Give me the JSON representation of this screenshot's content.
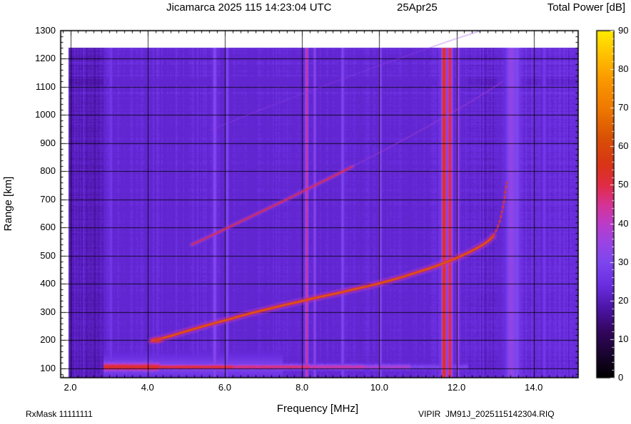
{
  "header": {
    "title": "Jicamarca 2025 115 14:23:04 UTC",
    "date": "25Apr25",
    "colorbar_title": "Total Power [dB]"
  },
  "footer": {
    "rx_mask": "RxMask 11111111",
    "file_label": "VIPIR  JM91J_2025115142304.RIQ"
  },
  "chart_data": {
    "type": "heatmap",
    "title": "Jicamarca 2025 115 14:23:04 UTC",
    "subtitle": "25Apr25",
    "xlabel": "Frequency [MHz]",
    "ylabel": "Range [km]",
    "colorbar_title": "Total Power [dB]",
    "x_range": [
      1.75,
      15.15
    ],
    "y_range": [
      67,
      1300
    ],
    "colorbar_range": [
      0,
      90
    ],
    "x_ticks": [
      {
        "value": 2,
        "label": "2.0"
      },
      {
        "value": 4,
        "label": "4.0"
      },
      {
        "value": 6,
        "label": "6.0"
      },
      {
        "value": 8,
        "label": "8.0"
      },
      {
        "value": 10,
        "label": "10.0"
      },
      {
        "value": 12,
        "label": "12.0"
      },
      {
        "value": 14,
        "label": "14.0"
      }
    ],
    "y_ticks": [
      {
        "value": 100,
        "label": "100"
      },
      {
        "value": 200,
        "label": "200"
      },
      {
        "value": 300,
        "label": "300"
      },
      {
        "value": 400,
        "label": "400"
      },
      {
        "value": 500,
        "label": "500"
      },
      {
        "value": 600,
        "label": "600"
      },
      {
        "value": 700,
        "label": "700"
      },
      {
        "value": 800,
        "label": "800"
      },
      {
        "value": 900,
        "label": "900"
      },
      {
        "value": 1000,
        "label": "1000"
      },
      {
        "value": 1100,
        "label": "1100"
      },
      {
        "value": 1200,
        "label": "1200"
      },
      {
        "value": 1300,
        "label": "1300"
      }
    ],
    "colorbar_ticks": [
      {
        "value": 0,
        "label": "0"
      },
      {
        "value": 10,
        "label": "10"
      },
      {
        "value": 20,
        "label": "20"
      },
      {
        "value": 30,
        "label": "30"
      },
      {
        "value": 40,
        "label": "40"
      },
      {
        "value": 50,
        "label": "50"
      },
      {
        "value": 60,
        "label": "60"
      },
      {
        "value": 70,
        "label": "70"
      },
      {
        "value": 80,
        "label": "80"
      },
      {
        "value": 90,
        "label": "90"
      }
    ],
    "data_extent": {
      "f_min": 1.95,
      "f_max": 15.15,
      "km_min": 67,
      "km_max": 1240
    },
    "background_db": 22.3,
    "colormap": [
      [
        0,
        "#000000"
      ],
      [
        6,
        "#1a0430"
      ],
      [
        12,
        "#33065e"
      ],
      [
        18,
        "#4c14a6"
      ],
      [
        24,
        "#6a2ee0"
      ],
      [
        30,
        "#7e46ee"
      ],
      [
        35,
        "#9a44e4"
      ],
      [
        40,
        "#bc3cc8"
      ],
      [
        45,
        "#d63392"
      ],
      [
        50,
        "#e02c44"
      ],
      [
        55,
        "#d93418"
      ],
      [
        62,
        "#d85006"
      ],
      [
        70,
        "#ef7a00"
      ],
      [
        78,
        "#fb9c00"
      ],
      [
        84,
        "#ffc300"
      ],
      [
        90,
        "#ffeb00"
      ]
    ],
    "noise": {
      "column_amp": 1.7,
      "column_zone": {
        "f0": 4.05,
        "f1": 5.35,
        "amp": 3.4
      },
      "left_dark": {
        "below_mhz": 2.85,
        "bias": -1.6
      },
      "right_bright": {
        "above_mhz": 13.62,
        "bias": 1.4
      },
      "pixel_amp": 1.2,
      "row_amp": 0.8,
      "row_amp_top": 2.2,
      "row_top_km": 1060
    },
    "stripes": [
      {
        "f": 3.05,
        "sigma": 0.025,
        "db": 27
      },
      {
        "f": 5.74,
        "sigma": 0.03,
        "db": 33
      },
      {
        "f": 6.06,
        "sigma": 0.025,
        "db": 31
      },
      {
        "f": 8.12,
        "sigma": 0.025,
        "db": 46
      },
      {
        "f": 8.33,
        "sigma": 0.02,
        "db": 34
      },
      {
        "f": 9.05,
        "sigma": 0.025,
        "db": 31
      },
      {
        "f": 10.03,
        "sigma": 0.022,
        "db": 33
      },
      {
        "f": 11.68,
        "sigma": 0.045,
        "db": 57
      },
      {
        "f": 11.83,
        "sigma": 0.04,
        "db": 53
      },
      {
        "f": 12.04,
        "sigma": 0.022,
        "db": 37
      },
      {
        "f": 13.42,
        "sigma": 0.09,
        "db": 34
      },
      {
        "f": 13.56,
        "sigma": 0.06,
        "db": 31
      },
      {
        "f": 14.27,
        "sigma": 0.022,
        "db": 28
      }
    ],
    "e_region": {
      "center_km": 105,
      "sigma_km": 6,
      "sigma_km_wide_left": 10,
      "left_wide_below_mhz": 4.3,
      "spread": {
        "f0": 2.85,
        "f1": 7.5,
        "db": 29,
        "sigma_km": 24
      },
      "segments": [
        {
          "f0": 2.85,
          "f1": 4.2,
          "db": 53
        },
        {
          "f0": 4.2,
          "f1": 6.2,
          "db": 52
        },
        {
          "f0": 6.2,
          "f1": 8.2,
          "db": 47
        },
        {
          "f0": 8.2,
          "f1": 9.6,
          "db": 43
        },
        {
          "f0": 9.6,
          "f1": 10.8,
          "db": 38
        },
        {
          "f0": 10.8,
          "f1": 12.3,
          "db": 30
        }
      ]
    },
    "traces": [
      {
        "name": "f-layer-first-hop",
        "core_db": 65,
        "mid_db": 51,
        "glow_db": 41,
        "width": 4.5,
        "alpha": 0.95,
        "blob_at": [
          4.25,
          200
        ],
        "points": [
          [
            4.1,
            198
          ],
          [
            4.35,
            206
          ],
          [
            4.6,
            215
          ],
          [
            4.9,
            228
          ],
          [
            5.2,
            240
          ],
          [
            5.5,
            252
          ],
          [
            5.8,
            263
          ],
          [
            6.1,
            274
          ],
          [
            6.4,
            286
          ],
          [
            6.7,
            297
          ],
          [
            7.0,
            307
          ],
          [
            7.3,
            317
          ],
          [
            7.6,
            327
          ],
          [
            7.9,
            336
          ],
          [
            8.2,
            346
          ],
          [
            8.5,
            355
          ],
          [
            8.8,
            364
          ],
          [
            9.1,
            373
          ],
          [
            9.4,
            383
          ],
          [
            9.7,
            392
          ],
          [
            10.0,
            402
          ],
          [
            10.3,
            413
          ],
          [
            10.6,
            425
          ],
          [
            10.9,
            438
          ],
          [
            11.2,
            451
          ],
          [
            11.5,
            465
          ],
          [
            11.8,
            481
          ],
          [
            12.05,
            495
          ],
          [
            12.3,
            511
          ],
          [
            12.5,
            525
          ],
          [
            12.7,
            541
          ],
          [
            12.85,
            556
          ],
          [
            12.95,
            570
          ]
        ]
      },
      {
        "name": "f-layer-first-hop-asymptote",
        "core_db": 60,
        "mid_db": 49,
        "glow_db": 0,
        "width": 3,
        "alpha": 0.9,
        "dashed": true,
        "points": [
          [
            12.95,
            570
          ],
          [
            13.05,
            596
          ],
          [
            13.13,
            628
          ],
          [
            13.19,
            664
          ],
          [
            13.24,
            700
          ],
          [
            13.27,
            732
          ],
          [
            13.3,
            760
          ]
        ]
      },
      {
        "name": "second-hop",
        "core_db": 52,
        "mid_db": 46,
        "glow_db": 37,
        "width": 3,
        "alpha": 0.8,
        "points": [
          [
            5.15,
            540
          ],
          [
            5.5,
            562
          ],
          [
            5.85,
            585
          ],
          [
            6.2,
            608
          ],
          [
            6.55,
            631
          ],
          [
            6.9,
            654
          ],
          [
            7.25,
            677
          ],
          [
            7.6,
            700
          ],
          [
            7.95,
            724
          ],
          [
            8.3,
            748
          ],
          [
            8.65,
            772
          ],
          [
            9.0,
            796
          ],
          [
            9.3,
            817
          ]
        ]
      },
      {
        "name": "second-hop-faint",
        "core_db": 40,
        "mid_db": 36,
        "glow_db": 0,
        "width": 2,
        "alpha": 0.35,
        "points": [
          [
            9.3,
            817
          ],
          [
            9.8,
            852
          ],
          [
            10.3,
            888
          ],
          [
            10.8,
            925
          ],
          [
            11.3,
            963
          ],
          [
            11.8,
            1002
          ],
          [
            12.3,
            1042
          ],
          [
            12.8,
            1084
          ],
          [
            13.2,
            1120
          ]
        ]
      },
      {
        "name": "third-hop-faint",
        "core_db": 36,
        "mid_db": 33,
        "glow_db": 0,
        "width": 1.5,
        "alpha": 0.28,
        "points": [
          [
            5.6,
            945
          ],
          [
            6.4,
            990
          ],
          [
            7.2,
            1033
          ],
          [
            8.0,
            1075
          ],
          [
            8.8,
            1116
          ],
          [
            9.6,
            1156
          ],
          [
            10.4,
            1196
          ],
          [
            11.2,
            1234
          ],
          [
            12.0,
            1272
          ],
          [
            12.6,
            1298
          ]
        ]
      }
    ]
  }
}
